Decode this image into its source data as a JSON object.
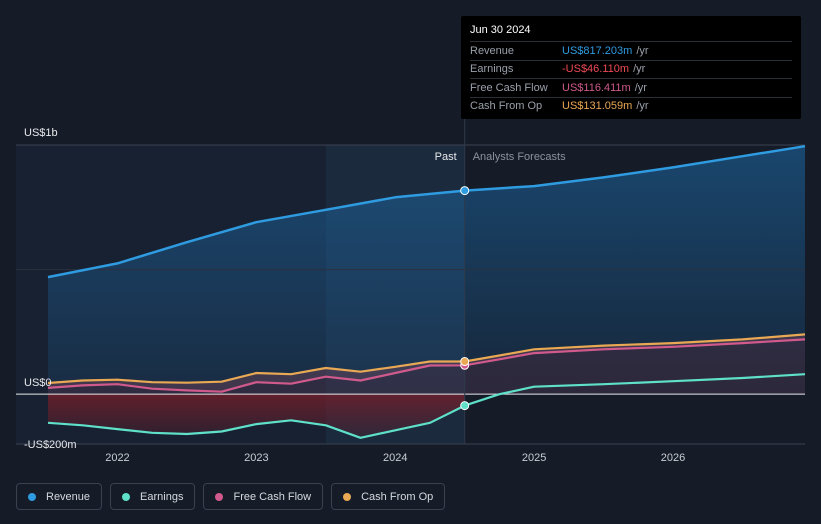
{
  "tooltip": {
    "date": "Jun 30 2024",
    "rows": [
      {
        "label": "Revenue",
        "value": "US$817.203m",
        "unit": "/yr",
        "color": "#2f9be0"
      },
      {
        "label": "Earnings",
        "value": "-US$46.110m",
        "unit": "/yr",
        "color": "#ef4a55"
      },
      {
        "label": "Free Cash Flow",
        "value": "US$116.411m",
        "unit": "/yr",
        "color": "#d05a8c"
      },
      {
        "label": "Cash From Op",
        "value": "US$131.059m",
        "unit": "/yr",
        "color": "#e9a854"
      }
    ]
  },
  "legend": [
    {
      "label": "Revenue",
      "color": "#2f9be0"
    },
    {
      "label": "Earnings",
      "color": "#5ee0c9"
    },
    {
      "label": "Free Cash Flow",
      "color": "#d05a8c"
    },
    {
      "label": "Cash From Op",
      "color": "#e9a854"
    }
  ],
  "chart_data": {
    "type": "line",
    "title": "",
    "y_tick_labels": [
      "US$1b",
      "US$0",
      "-US$200m"
    ],
    "ylim": [
      -200,
      1000
    ],
    "x_ticks": [
      2022,
      2023,
      2024,
      2025,
      2026
    ],
    "xlim": [
      2021.5,
      2026.95
    ],
    "past_label": "Past",
    "forecast_label": "Analysts Forecasts",
    "divider_x": 2024.5,
    "shade_start_x": 2023.5,
    "series": [
      {
        "name": "Revenue",
        "color": "#2f9be0",
        "points": [
          [
            2021.5,
            470
          ],
          [
            2022.0,
            525
          ],
          [
            2022.5,
            610
          ],
          [
            2023.0,
            690
          ],
          [
            2023.5,
            740
          ],
          [
            2024.0,
            790
          ],
          [
            2024.5,
            817
          ],
          [
            2025.0,
            835
          ],
          [
            2025.5,
            870
          ],
          [
            2026.0,
            910
          ],
          [
            2026.5,
            955
          ],
          [
            2026.95,
            995
          ]
        ]
      },
      {
        "name": "Earnings",
        "color": "#5ee0c9",
        "points": [
          [
            2021.5,
            -115
          ],
          [
            2021.75,
            -125
          ],
          [
            2022.0,
            -140
          ],
          [
            2022.25,
            -155
          ],
          [
            2022.5,
            -160
          ],
          [
            2022.75,
            -150
          ],
          [
            2023.0,
            -120
          ],
          [
            2023.25,
            -105
          ],
          [
            2023.5,
            -125
          ],
          [
            2023.75,
            -175
          ],
          [
            2024.0,
            -145
          ],
          [
            2024.25,
            -115
          ],
          [
            2024.5,
            -46
          ],
          [
            2024.75,
            0
          ],
          [
            2025.0,
            30
          ],
          [
            2025.5,
            40
          ],
          [
            2026.0,
            52
          ],
          [
            2026.5,
            65
          ],
          [
            2026.95,
            80
          ]
        ]
      },
      {
        "name": "Free Cash Flow",
        "color": "#d05a8c",
        "points": [
          [
            2021.5,
            25
          ],
          [
            2021.75,
            35
          ],
          [
            2022.0,
            40
          ],
          [
            2022.25,
            22
          ],
          [
            2022.5,
            15
          ],
          [
            2022.75,
            10
          ],
          [
            2023.0,
            48
          ],
          [
            2023.25,
            42
          ],
          [
            2023.5,
            70
          ],
          [
            2023.75,
            55
          ],
          [
            2024.0,
            85
          ],
          [
            2024.25,
            115
          ],
          [
            2024.5,
            116
          ],
          [
            2024.75,
            140
          ],
          [
            2025.0,
            165
          ],
          [
            2025.5,
            180
          ],
          [
            2026.0,
            190
          ],
          [
            2026.5,
            205
          ],
          [
            2026.95,
            220
          ]
        ]
      },
      {
        "name": "Cash From Op",
        "color": "#e9a854",
        "points": [
          [
            2021.5,
            45
          ],
          [
            2021.75,
            55
          ],
          [
            2022.0,
            58
          ],
          [
            2022.25,
            48
          ],
          [
            2022.5,
            46
          ],
          [
            2022.75,
            50
          ],
          [
            2023.0,
            85
          ],
          [
            2023.25,
            80
          ],
          [
            2023.5,
            105
          ],
          [
            2023.75,
            90
          ],
          [
            2024.0,
            110
          ],
          [
            2024.25,
            131
          ],
          [
            2024.5,
            131
          ],
          [
            2024.75,
            155
          ],
          [
            2025.0,
            180
          ],
          [
            2025.5,
            195
          ],
          [
            2026.0,
            205
          ],
          [
            2026.5,
            220
          ],
          [
            2026.95,
            240
          ]
        ]
      }
    ]
  }
}
